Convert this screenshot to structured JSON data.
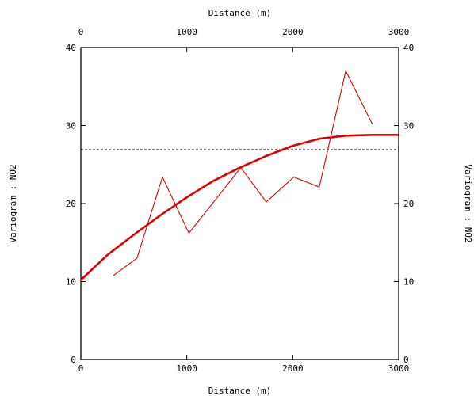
{
  "chart_data": {
    "type": "line",
    "xlabel": "Distance (m)",
    "ylabel": "Variogram : NO2",
    "xlim": [
      0,
      3000
    ],
    "ylim": [
      0,
      40
    ],
    "x_ticks": [
      0,
      1000,
      2000,
      3000
    ],
    "y_ticks": [
      0,
      10,
      20,
      30,
      40
    ],
    "grid": false,
    "sill_line": {
      "y": 26.9,
      "style": "dashed",
      "color": "#000000"
    },
    "series": [
      {
        "role": "experimental",
        "color": "#e00000",
        "x": [
          310,
          530,
          770,
          1020,
          1510,
          1750,
          2010,
          2250,
          2500,
          2750
        ],
        "y": [
          10.8,
          13.0,
          23.4,
          16.2,
          24.6,
          20.2,
          23.4,
          22.1,
          37.0,
          30.2
        ]
      },
      {
        "role": "model",
        "color": "#e00000",
        "x": [
          0,
          250,
          500,
          750,
          1000,
          1250,
          1500,
          1750,
          2000,
          2250,
          2500,
          2750,
          3000
        ],
        "y": [
          10.2,
          13.4,
          16.0,
          18.5,
          20.8,
          22.9,
          24.6,
          26.1,
          27.4,
          28.3,
          28.7,
          28.8,
          28.8
        ]
      }
    ]
  }
}
